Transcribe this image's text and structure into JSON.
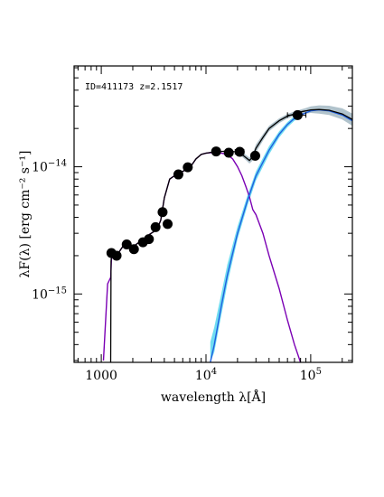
{
  "chart_data": {
    "type": "line",
    "annotation": "ID=411173 z=2.1517",
    "xlabel": "wavelength λ[Å]",
    "ylabel": "λF(λ) [erg cm⁻² s⁻¹]",
    "x_scale": "log",
    "y_scale": "log",
    "xlim": [
      550,
      250000
    ],
    "ylim": [
      2.9e-16,
      6.2e-14
    ],
    "grid": false,
    "legend": "none",
    "x_ticks": [
      {
        "value": 1000,
        "label": "1000"
      },
      {
        "value": 10000,
        "base": "10",
        "exp": "4"
      },
      {
        "value": 100000,
        "base": "10",
        "exp": "5"
      }
    ],
    "y_ticks": [
      {
        "value": 1e-15,
        "base": "10",
        "exp": "−15"
      },
      {
        "value": 1e-14,
        "base": "10",
        "exp": "−14"
      }
    ],
    "colors": {
      "total": "#000000",
      "stellar": "#7b00b4",
      "dust": "#1f5fe0",
      "dust_band": "#5fd8f0",
      "total_band": "#a9bcc6",
      "points": "#000000"
    },
    "series": [
      {
        "key": "stellar",
        "x": [
          1050,
          1150,
          1230,
          1260,
          1300,
          1400,
          1600,
          1800,
          2000,
          2300,
          2600,
          2900,
          3200,
          3500,
          3700,
          4000,
          4500,
          5000,
          6000,
          7000,
          8000,
          9000,
          10000,
          12000,
          14000,
          16000,
          18000,
          20000,
          22000,
          24000,
          26000,
          28000,
          30000,
          35000,
          40000,
          50000,
          60000,
          70000,
          80000
        ],
        "y": [
          3e-16,
          1.2e-15,
          1.35e-15,
          2.1e-15,
          2.05e-15,
          2e-15,
          2.35e-15,
          2.3e-15,
          2.35e-15,
          2.55e-15,
          2.7e-15,
          2.95e-15,
          3.1e-15,
          3.4e-15,
          3.8e-15,
          5.7e-15,
          8e-15,
          8.5e-15,
          9.2e-15,
          9.8e-15,
          1.15e-14,
          1.25e-14,
          1.28e-14,
          1.3e-14,
          1.28e-14,
          1.25e-14,
          1.15e-14,
          1e-14,
          8.5e-15,
          7e-15,
          5.8e-15,
          4.6e-15,
          4.2e-15,
          3e-15,
          2e-15,
          1.1e-15,
          6.2e-16,
          4e-16,
          2.9e-16
        ]
      },
      {
        "key": "dust",
        "x": [
          11000,
          12000,
          14000,
          16000,
          18000,
          20000,
          25000,
          30000,
          40000,
          50000,
          60000,
          70000,
          80000,
          100000,
          120000,
          150000,
          200000,
          250000
        ],
        "y": [
          2.9e-16,
          4e-16,
          8e-16,
          1.4e-15,
          2.1e-15,
          3e-15,
          5.5e-15,
          8.5e-15,
          1.35e-14,
          1.8e-14,
          2.15e-14,
          2.4e-14,
          2.55e-14,
          2.75e-14,
          2.8e-14,
          2.75e-14,
          2.55e-14,
          2.3e-14
        ]
      },
      {
        "key": "total",
        "x": [
          1230,
          1240,
          1260,
          1300,
          1400,
          1600,
          1800,
          2000,
          2300,
          2600,
          2900,
          3200,
          3500,
          3700,
          4000,
          4500,
          5000,
          6000,
          7000,
          8000,
          9000,
          10000,
          12000,
          14000,
          16000,
          18000,
          20000,
          22000,
          24000,
          26000,
          28000,
          30000,
          35000,
          40000,
          50000,
          60000,
          70000,
          80000,
          90000,
          100000,
          120000,
          150000,
          200000,
          250000
        ],
        "y": [
          2.9e-16,
          1.8e-15,
          2.1e-15,
          2.05e-15,
          2e-15,
          2.35e-15,
          2.3e-15,
          2.35e-15,
          2.55e-15,
          2.7e-15,
          2.95e-15,
          3.1e-15,
          3.4e-15,
          3.8e-15,
          5.7e-15,
          8e-15,
          8.5e-15,
          9.2e-15,
          9.8e-15,
          1.15e-14,
          1.25e-14,
          1.28e-14,
          1.31e-14,
          1.32e-14,
          1.33e-14,
          1.32e-14,
          1.3e-14,
          1.25e-14,
          1.18e-14,
          1.12e-14,
          1.2e-14,
          1.4e-14,
          1.7e-14,
          2e-14,
          2.3e-14,
          2.5e-14,
          2.6e-14,
          2.7e-14,
          2.75e-14,
          2.8e-14,
          2.82e-14,
          2.78e-14,
          2.6e-14,
          2.35e-14
        ]
      }
    ],
    "bands": [
      {
        "key": "dust_band",
        "x": [
          11000,
          12000,
          14000,
          16000,
          18000,
          20000,
          25000,
          30000,
          40000,
          50000,
          60000,
          70000,
          80000
        ],
        "y_low": [
          2.9e-16,
          3.5e-16,
          6.8e-16,
          1.2e-15,
          1.85e-15,
          2.7e-15,
          5e-15,
          7.8e-15,
          1.25e-14,
          1.7e-14,
          2.05e-14,
          2.3e-14,
          2.45e-14
        ],
        "y_high": [
          4.2e-16,
          5.5e-16,
          1e-15,
          1.7e-15,
          2.45e-15,
          3.4e-15,
          6e-15,
          9.2e-15,
          1.45e-14,
          1.9e-14,
          2.25e-14,
          2.5e-14,
          2.65e-14
        ]
      },
      {
        "key": "total_band",
        "x": [
          20000,
          22000,
          24000,
          26000,
          28000,
          30000,
          35000,
          40000,
          50000,
          60000,
          70000,
          80000,
          90000,
          100000,
          120000,
          150000,
          200000,
          250000
        ],
        "y_low": [
          1.26e-14,
          1.2e-14,
          1.13e-14,
          1.06e-14,
          1.12e-14,
          1.3e-14,
          1.6e-14,
          1.9e-14,
          2.2e-14,
          2.4e-14,
          2.5e-14,
          2.58e-14,
          2.62e-14,
          2.65e-14,
          2.62e-14,
          2.55e-14,
          2.35e-14,
          2.1e-14
        ],
        "y_high": [
          1.34e-14,
          1.3e-14,
          1.24e-14,
          1.18e-14,
          1.28e-14,
          1.5e-14,
          1.8e-14,
          2.1e-14,
          2.4e-14,
          2.6e-14,
          2.72e-14,
          2.82e-14,
          2.9e-14,
          2.98e-14,
          3.04e-14,
          3.02e-14,
          2.88e-14,
          2.62e-14
        ]
      }
    ],
    "points": [
      {
        "x": 1250,
        "y": 2.1e-15,
        "xerr": [
          1180,
          1330
        ]
      },
      {
        "x": 1400,
        "y": 2e-15,
        "xerr": [
          1320,
          1480
        ]
      },
      {
        "x": 1750,
        "y": 2.45e-15,
        "xerr": [
          1650,
          1850
        ]
      },
      {
        "x": 2050,
        "y": 2.25e-15,
        "xerr": [
          1930,
          2170
        ]
      },
      {
        "x": 2500,
        "y": 2.55e-15,
        "xerr": [
          2350,
          2650
        ]
      },
      {
        "x": 2850,
        "y": 2.7e-15,
        "xerr": [
          2680,
          3020
        ]
      },
      {
        "x": 3300,
        "y": 3.35e-15,
        "xerr": [
          3100,
          3500
        ]
      },
      {
        "x": 3850,
        "y": 4.4e-15,
        "xerr": [
          3600,
          4100
        ]
      },
      {
        "x": 4300,
        "y": 3.55e-15,
        "xerr": [
          4050,
          4550
        ]
      },
      {
        "x": 5450,
        "y": 8.7e-15,
        "xerr": [
          5150,
          5750
        ]
      },
      {
        "x": 6700,
        "y": 9.9e-15,
        "xerr": [
          6300,
          7100
        ]
      },
      {
        "x": 12500,
        "y": 1.32e-14,
        "xerr": [
          11500,
          13500
        ]
      },
      {
        "x": 16500,
        "y": 1.29e-14,
        "xerr": [
          15300,
          17700
        ]
      },
      {
        "x": 21000,
        "y": 1.31e-14,
        "xerr": [
          19000,
          23000
        ]
      },
      {
        "x": 29500,
        "y": 1.22e-14,
        "xerr": [
          27000,
          32000
        ]
      },
      {
        "x": 75000,
        "y": 2.55e-14,
        "xerr": [
          60000,
          90000
        ]
      }
    ]
  }
}
